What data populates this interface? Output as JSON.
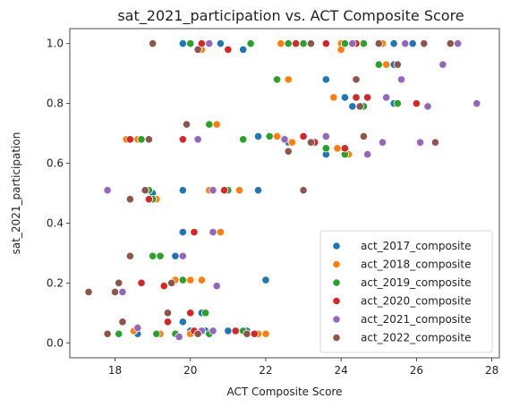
{
  "chart_data": {
    "type": "scatter",
    "title": "sat_2021_participation vs. ACT Composite Score",
    "xlabel": "ACT Composite Score",
    "ylabel": "sat_2021_participation",
    "xlim": [
      16.8,
      28.2
    ],
    "ylim": [
      -0.05,
      1.05
    ],
    "xticks": [
      18,
      20,
      22,
      24,
      26,
      28
    ],
    "yticks": [
      0.0,
      0.2,
      0.4,
      0.6,
      0.8,
      1.0
    ],
    "grid": false,
    "legend_position": "lower right",
    "series": [
      {
        "name": "act_2017_composite",
        "color": "#1f77b4",
        "points": [
          [
            19.8,
            1.0
          ],
          [
            20.3,
            1.0
          ],
          [
            20.8,
            1.0
          ],
          [
            21.4,
            0.98
          ],
          [
            25.4,
            1.0
          ],
          [
            25.9,
            1.0
          ],
          [
            23.6,
            0.88
          ],
          [
            24.1,
            0.82
          ],
          [
            24.3,
            0.79
          ],
          [
            25.4,
            0.93
          ],
          [
            25.4,
            0.8
          ],
          [
            21.4,
            0.68
          ],
          [
            21.8,
            0.69
          ],
          [
            22.6,
            0.67
          ],
          [
            23.6,
            0.63
          ],
          [
            23.9,
            0.65
          ],
          [
            19.0,
            0.5
          ],
          [
            19.8,
            0.51
          ],
          [
            21.8,
            0.51
          ],
          [
            19.8,
            0.37
          ],
          [
            19.6,
            0.29
          ],
          [
            22.0,
            0.21
          ],
          [
            18.6,
            0.03
          ],
          [
            19.4,
            0.07
          ],
          [
            19.8,
            0.07
          ],
          [
            20.0,
            0.04
          ],
          [
            20.3,
            0.1
          ],
          [
            20.4,
            0.04
          ],
          [
            21.0,
            0.04
          ],
          [
            21.5,
            0.04
          ],
          [
            21.7,
            0.03
          ]
        ]
      },
      {
        "name": "act_2018_composite",
        "color": "#ff7f0e",
        "points": [
          [
            20.0,
            1.0
          ],
          [
            20.3,
            0.98
          ],
          [
            22.4,
            1.0
          ],
          [
            24.0,
            1.0
          ],
          [
            24.0,
            0.98
          ],
          [
            25.1,
            1.0
          ],
          [
            22.6,
            0.88
          ],
          [
            23.8,
            0.82
          ],
          [
            25.2,
            0.93
          ],
          [
            18.3,
            0.68
          ],
          [
            18.6,
            0.68
          ],
          [
            20.7,
            0.73
          ],
          [
            22.3,
            0.69
          ],
          [
            22.7,
            0.67
          ],
          [
            23.9,
            0.65
          ],
          [
            24.2,
            0.63
          ],
          [
            19.1,
            0.48
          ],
          [
            20.5,
            0.51
          ],
          [
            21.3,
            0.51
          ],
          [
            20.8,
            0.37
          ],
          [
            18.2,
            0.17
          ],
          [
            19.6,
            0.21
          ],
          [
            20.0,
            0.21
          ],
          [
            20.3,
            0.21
          ],
          [
            18.5,
            0.04
          ],
          [
            19.2,
            0.03
          ],
          [
            20.0,
            0.03
          ],
          [
            21.8,
            0.03
          ],
          [
            22.0,
            0.03
          ]
        ]
      },
      {
        "name": "act_2019_composite",
        "color": "#2ca02c",
        "points": [
          [
            20.0,
            1.0
          ],
          [
            21.6,
            1.0
          ],
          [
            22.6,
            1.0
          ],
          [
            23.0,
            1.0
          ],
          [
            24.1,
            1.0
          ],
          [
            24.6,
            1.0
          ],
          [
            25.0,
            0.93
          ],
          [
            25.5,
            0.8
          ],
          [
            22.3,
            0.88
          ],
          [
            24.6,
            0.79
          ],
          [
            18.7,
            0.68
          ],
          [
            20.5,
            0.73
          ],
          [
            21.4,
            0.68
          ],
          [
            22.1,
            0.69
          ],
          [
            23.6,
            0.65
          ],
          [
            24.1,
            0.63
          ],
          [
            18.9,
            0.51
          ],
          [
            19.0,
            0.48
          ],
          [
            21.0,
            0.51
          ],
          [
            19.0,
            0.29
          ],
          [
            19.2,
            0.29
          ],
          [
            19.8,
            0.21
          ],
          [
            20.4,
            0.1
          ],
          [
            18.1,
            0.03
          ],
          [
            19.1,
            0.03
          ],
          [
            19.6,
            0.03
          ],
          [
            20.5,
            0.03
          ],
          [
            21.2,
            0.04
          ],
          [
            21.4,
            0.04
          ]
        ]
      },
      {
        "name": "act_2020_composite",
        "color": "#d62728",
        "points": [
          [
            20.3,
            1.0
          ],
          [
            21.0,
            0.98
          ],
          [
            22.8,
            1.0
          ],
          [
            23.6,
            1.0
          ],
          [
            24.4,
            1.0
          ],
          [
            25.7,
            1.0
          ],
          [
            24.4,
            0.82
          ],
          [
            24.7,
            0.82
          ],
          [
            26.0,
            0.8
          ],
          [
            18.4,
            0.68
          ],
          [
            19.8,
            0.68
          ],
          [
            22.6,
            0.64
          ],
          [
            23.0,
            0.69
          ],
          [
            23.3,
            0.67
          ],
          [
            24.1,
            0.65
          ],
          [
            18.9,
            0.48
          ],
          [
            20.9,
            0.51
          ],
          [
            20.1,
            0.37
          ],
          [
            18.1,
            0.2
          ],
          [
            18.7,
            0.2
          ],
          [
            19.3,
            0.19
          ],
          [
            19.4,
            0.07
          ],
          [
            20.0,
            0.1
          ],
          [
            20.1,
            0.04
          ],
          [
            21.2,
            0.04
          ],
          [
            21.7,
            0.03
          ]
        ]
      },
      {
        "name": "act_2021_composite",
        "color": "#9467bd",
        "points": [
          [
            20.5,
            1.0
          ],
          [
            24.3,
            1.0
          ],
          [
            25.7,
            1.0
          ],
          [
            27.1,
            1.0
          ],
          [
            26.7,
            0.93
          ],
          [
            25.6,
            0.88
          ],
          [
            25.2,
            0.82
          ],
          [
            26.3,
            0.79
          ],
          [
            27.6,
            0.8
          ],
          [
            20.2,
            0.68
          ],
          [
            22.5,
            0.68
          ],
          [
            23.6,
            0.69
          ],
          [
            24.7,
            0.63
          ],
          [
            25.1,
            0.67
          ],
          [
            26.1,
            0.67
          ],
          [
            17.8,
            0.51
          ],
          [
            18.8,
            0.51
          ],
          [
            20.6,
            0.51
          ],
          [
            19.8,
            0.29
          ],
          [
            20.6,
            0.37
          ],
          [
            20.7,
            0.19
          ],
          [
            18.2,
            0.17
          ],
          [
            18.6,
            0.05
          ],
          [
            19.7,
            0.02
          ],
          [
            20.3,
            0.04
          ],
          [
            20.6,
            0.04
          ]
        ]
      },
      {
        "name": "act_2022_composite",
        "color": "#8c564b",
        "points": [
          [
            19.0,
            1.0
          ],
          [
            20.2,
            0.98
          ],
          [
            23.2,
            1.0
          ],
          [
            25.0,
            1.0
          ],
          [
            26.2,
            1.0
          ],
          [
            26.9,
            1.0
          ],
          [
            24.4,
            0.88
          ],
          [
            25.5,
            0.93
          ],
          [
            24.5,
            0.79
          ],
          [
            18.9,
            0.68
          ],
          [
            19.9,
            0.73
          ],
          [
            22.6,
            0.64
          ],
          [
            23.2,
            0.67
          ],
          [
            24.6,
            0.69
          ],
          [
            26.5,
            0.67
          ],
          [
            18.4,
            0.48
          ],
          [
            18.8,
            0.51
          ],
          [
            23.0,
            0.51
          ],
          [
            18.4,
            0.29
          ],
          [
            17.3,
            0.17
          ],
          [
            18.0,
            0.17
          ],
          [
            18.1,
            0.2
          ],
          [
            19.5,
            0.2
          ],
          [
            18.2,
            0.07
          ],
          [
            17.8,
            0.03
          ],
          [
            19.4,
            0.1
          ],
          [
            20.2,
            0.03
          ],
          [
            21.5,
            0.03
          ]
        ]
      }
    ]
  }
}
